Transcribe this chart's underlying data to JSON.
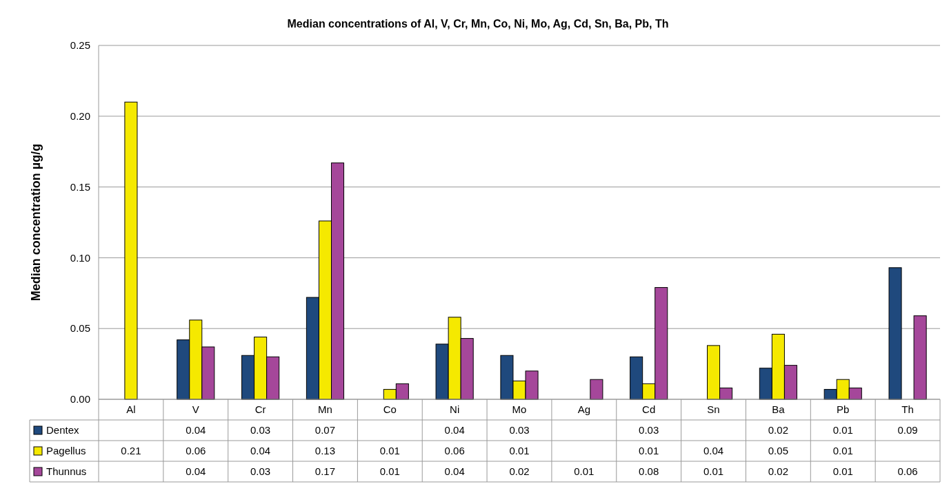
{
  "chart_data": {
    "type": "bar",
    "title": "Median concentrations of Al, V, Cr, Mn, Co, Ni, Mo, Ag, Cd, Sn, Ba, Pb, Th",
    "ylabel": "Median concentration µg/g",
    "categories": [
      "Al",
      "V",
      "Cr",
      "Mn",
      "Co",
      "Ni",
      "Mo",
      "Ag",
      "Cd",
      "Sn",
      "Ba",
      "Pb",
      "Th"
    ],
    "series": [
      {
        "name": "Dentex",
        "color": "#1f497d",
        "values": [
          null,
          0.042,
          0.031,
          0.072,
          null,
          0.039,
          0.031,
          null,
          0.03,
          null,
          0.022,
          0.007,
          0.093
        ],
        "value_labels": [
          null,
          "0.04",
          "0.03",
          "0.07",
          null,
          "0.04",
          "0.03",
          null,
          "0.03",
          null,
          "0.02",
          "0.01",
          "0.09"
        ]
      },
      {
        "name": "Pagellus",
        "color": "#f5e900",
        "values": [
          0.21,
          0.056,
          0.044,
          0.126,
          0.007,
          0.058,
          0.013,
          null,
          0.011,
          0.038,
          0.046,
          0.014,
          null
        ],
        "value_labels": [
          "0.21",
          "0.06",
          "0.04",
          "0.13",
          "0.01",
          "0.06",
          "0.01",
          null,
          "0.01",
          "0.04",
          "0.05",
          "0.01",
          null
        ]
      },
      {
        "name": "Thunnus",
        "color": "#a5479a",
        "values": [
          null,
          0.037,
          0.03,
          0.167,
          0.011,
          0.043,
          0.02,
          0.014,
          0.079,
          0.008,
          0.024,
          0.008,
          0.059
        ],
        "value_labels": [
          null,
          "0.04",
          "0.03",
          "0.17",
          "0.01",
          "0.04",
          "0.02",
          "0.01",
          "0.08",
          "0.01",
          "0.02",
          "0.01",
          "0.06"
        ]
      }
    ],
    "ylim": [
      0,
      0.25
    ],
    "yticks": [
      {
        "value": 0,
        "label": "0.00"
      },
      {
        "value": 0.05,
        "label": "0.05"
      },
      {
        "value": 0.1,
        "label": "0.10"
      },
      {
        "value": 0.15,
        "label": "0.15"
      },
      {
        "value": 0.2,
        "label": "0.20"
      },
      {
        "value": 0.25,
        "label": "0.25"
      }
    ],
    "grid": "y",
    "legend": "bottom"
  }
}
